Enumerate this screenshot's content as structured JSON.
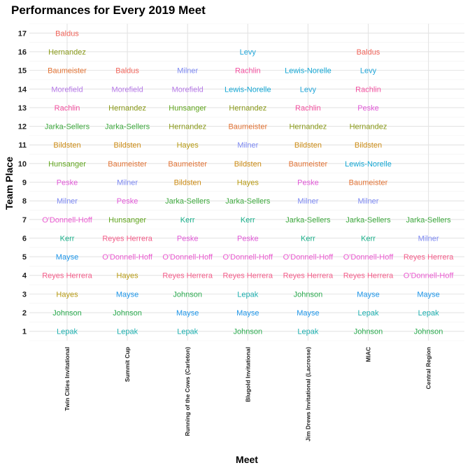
{
  "chart_data": {
    "type": "scatter",
    "title": "Performances for Every 2019 Meet",
    "xlabel": "Meet",
    "ylabel": "Team Place",
    "ylim": [
      0.5,
      17.5
    ],
    "y_ticks": [
      1,
      2,
      3,
      4,
      5,
      6,
      7,
      8,
      9,
      10,
      11,
      12,
      13,
      14,
      15,
      16,
      17
    ],
    "grid": true,
    "legend": "none",
    "categories": [
      "Twin Cities Invitational",
      "Summit Cup",
      "Running of the Cows (Carleton)",
      "Blugold Invitational",
      "Jim Drews Invitational (Lacrosse)",
      "MIAC",
      "Central Region"
    ],
    "colors": {
      "Baldus": "#f0645a",
      "Hernandez": "#8a9a1a",
      "Baumeister": "#e27335",
      "Morefield": "#b77ae8",
      "Rachlin": "#f2509f",
      "Jarka-Sellers": "#3faa3f",
      "Bildsten": "#cc8b14",
      "Hunsanger": "#62a61f",
      "Peske": "#e25ad8",
      "Milner": "#7c88f2",
      "O'Donnell-Hoff": "#ea5ad0",
      "Kerr": "#1ab08a",
      "Mayse": "#1f97ea",
      "Reyes Herrera": "#f45c89",
      "Hayes": "#b79a12",
      "Johnson": "#2bab4f",
      "Lepak": "#1fb0b0",
      "Levy": "#22a7da",
      "Lewis-Norelle": "#14a7d4"
    },
    "meets": [
      {
        "meet": "Twin Cities Invitational",
        "placements": [
          {
            "name": "Lepak",
            "place": 1
          },
          {
            "name": "Johnson",
            "place": 2
          },
          {
            "name": "Hayes",
            "place": 3
          },
          {
            "name": "Reyes Herrera",
            "place": 4
          },
          {
            "name": "Mayse",
            "place": 5
          },
          {
            "name": "Kerr",
            "place": 6
          },
          {
            "name": "O'Donnell-Hoff",
            "place": 7
          },
          {
            "name": "Milner",
            "place": 8
          },
          {
            "name": "Peske",
            "place": 9
          },
          {
            "name": "Hunsanger",
            "place": 10
          },
          {
            "name": "Bildsten",
            "place": 11
          },
          {
            "name": "Jarka-Sellers",
            "place": 12
          },
          {
            "name": "Rachlin",
            "place": 13
          },
          {
            "name": "Morefield",
            "place": 14
          },
          {
            "name": "Baumeister",
            "place": 15
          },
          {
            "name": "Hernandez",
            "place": 16
          },
          {
            "name": "Baldus",
            "place": 17
          }
        ]
      },
      {
        "meet": "Summit Cup",
        "placements": [
          {
            "name": "Lepak",
            "place": 1
          },
          {
            "name": "Johnson",
            "place": 2
          },
          {
            "name": "Mayse",
            "place": 3
          },
          {
            "name": "Hayes",
            "place": 4
          },
          {
            "name": "O'Donnell-Hoff",
            "place": 5
          },
          {
            "name": "Reyes Herrera",
            "place": 6
          },
          {
            "name": "Hunsanger",
            "place": 7
          },
          {
            "name": "Peske",
            "place": 8
          },
          {
            "name": "Milner",
            "place": 9
          },
          {
            "name": "Baumeister",
            "place": 10
          },
          {
            "name": "Bildsten",
            "place": 11
          },
          {
            "name": "Jarka-Sellers",
            "place": 12
          },
          {
            "name": "Hernandez",
            "place": 13
          },
          {
            "name": "Morefield",
            "place": 14
          },
          {
            "name": "Baldus",
            "place": 15
          }
        ]
      },
      {
        "meet": "Running of the Cows (Carleton)",
        "placements": [
          {
            "name": "Lepak",
            "place": 1
          },
          {
            "name": "Mayse",
            "place": 2
          },
          {
            "name": "Johnson",
            "place": 3
          },
          {
            "name": "Reyes Herrera",
            "place": 4
          },
          {
            "name": "O'Donnell-Hoff",
            "place": 5
          },
          {
            "name": "Peske",
            "place": 6
          },
          {
            "name": "Kerr",
            "place": 7
          },
          {
            "name": "Jarka-Sellers",
            "place": 8
          },
          {
            "name": "Bildsten",
            "place": 9
          },
          {
            "name": "Baumeister",
            "place": 10
          },
          {
            "name": "Hayes",
            "place": 11
          },
          {
            "name": "Hernandez",
            "place": 12
          },
          {
            "name": "Hunsanger",
            "place": 13
          },
          {
            "name": "Morefield",
            "place": 14
          },
          {
            "name": "Milner",
            "place": 15
          }
        ]
      },
      {
        "meet": "Blugold Invitational",
        "placements": [
          {
            "name": "Johnson",
            "place": 1
          },
          {
            "name": "Mayse",
            "place": 2
          },
          {
            "name": "Lepak",
            "place": 3
          },
          {
            "name": "Reyes Herrera",
            "place": 4
          },
          {
            "name": "O'Donnell-Hoff",
            "place": 5
          },
          {
            "name": "Peske",
            "place": 6
          },
          {
            "name": "Kerr",
            "place": 7
          },
          {
            "name": "Jarka-Sellers",
            "place": 8
          },
          {
            "name": "Hayes",
            "place": 9
          },
          {
            "name": "Bildsten",
            "place": 10
          },
          {
            "name": "Milner",
            "place": 11
          },
          {
            "name": "Baumeister",
            "place": 12
          },
          {
            "name": "Hernandez",
            "place": 13
          },
          {
            "name": "Lewis-Norelle",
            "place": 14
          },
          {
            "name": "Rachlin",
            "place": 15
          },
          {
            "name": "Levy",
            "place": 16
          }
        ]
      },
      {
        "meet": "Jim Drews Invitational (Lacrosse)",
        "placements": [
          {
            "name": "Lepak",
            "place": 1
          },
          {
            "name": "Mayse",
            "place": 2
          },
          {
            "name": "Johnson",
            "place": 3
          },
          {
            "name": "Reyes Herrera",
            "place": 4
          },
          {
            "name": "O'Donnell-Hoff",
            "place": 5
          },
          {
            "name": "Kerr",
            "place": 6
          },
          {
            "name": "Jarka-Sellers",
            "place": 7
          },
          {
            "name": "Milner",
            "place": 8
          },
          {
            "name": "Peske",
            "place": 9
          },
          {
            "name": "Baumeister",
            "place": 10
          },
          {
            "name": "Bildsten",
            "place": 11
          },
          {
            "name": "Hernandez",
            "place": 12
          },
          {
            "name": "Rachlin",
            "place": 13
          },
          {
            "name": "Levy",
            "place": 14
          },
          {
            "name": "Lewis-Norelle",
            "place": 15
          }
        ]
      },
      {
        "meet": "MIAC",
        "placements": [
          {
            "name": "Johnson",
            "place": 1
          },
          {
            "name": "Lepak",
            "place": 2
          },
          {
            "name": "Mayse",
            "place": 3
          },
          {
            "name": "Reyes Herrera",
            "place": 4
          },
          {
            "name": "O'Donnell-Hoff",
            "place": 5
          },
          {
            "name": "Kerr",
            "place": 6
          },
          {
            "name": "Jarka-Sellers",
            "place": 7
          },
          {
            "name": "Milner",
            "place": 8
          },
          {
            "name": "Baumeister",
            "place": 9
          },
          {
            "name": "Lewis-Norelle",
            "place": 10
          },
          {
            "name": "Bildsten",
            "place": 11
          },
          {
            "name": "Hernandez",
            "place": 12
          },
          {
            "name": "Peske",
            "place": 13
          },
          {
            "name": "Rachlin",
            "place": 14
          },
          {
            "name": "Levy",
            "place": 15
          },
          {
            "name": "Baldus",
            "place": 16
          }
        ]
      },
      {
        "meet": "Central Region",
        "placements": [
          {
            "name": "Johnson",
            "place": 1
          },
          {
            "name": "Lepak",
            "place": 2
          },
          {
            "name": "Mayse",
            "place": 3
          },
          {
            "name": "O'Donnell-Hoff",
            "place": 4
          },
          {
            "name": "Reyes Herrera",
            "place": 5
          },
          {
            "name": "Milner",
            "place": 6
          },
          {
            "name": "Jarka-Sellers",
            "place": 7
          }
        ]
      }
    ]
  }
}
